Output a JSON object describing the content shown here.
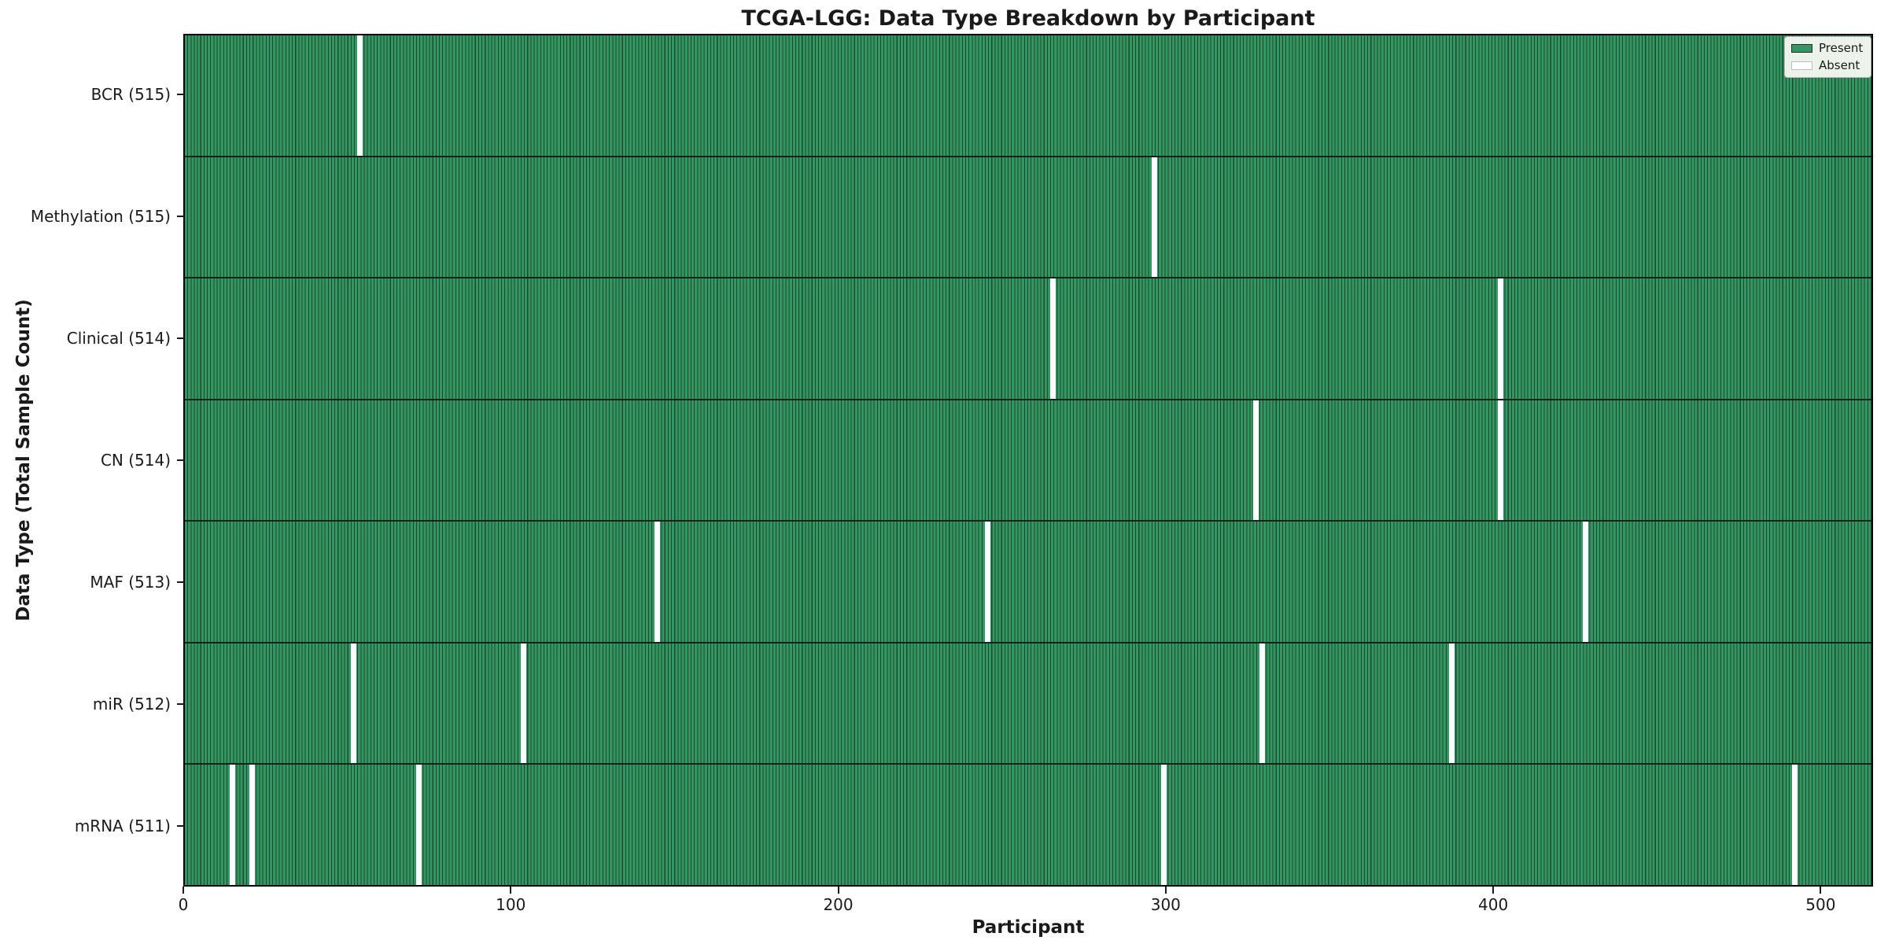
{
  "figure": {
    "title": "TCGA-LGG: Data Type Breakdown by Participant",
    "xlabel": "Participant",
    "ylabel": "Data Type (Total Sample Count)"
  },
  "legend": {
    "items": [
      {
        "label": "Present",
        "color": "#349662",
        "border": "#2d2d2d"
      },
      {
        "label": "Absent",
        "color": "#ffffff",
        "border": "#bdbdbd"
      }
    ]
  },
  "chart_data": {
    "type": "heatmap",
    "title": "TCGA-LGG: Data Type Breakdown by Participant",
    "xlabel": "Participant",
    "ylabel": "Data Type (Total Sample Count)",
    "n_participants": 516,
    "xlim": [
      0,
      516
    ],
    "x_ticks": [
      0,
      100,
      200,
      300,
      400,
      500
    ],
    "grid": false,
    "legend_position": "upper right",
    "legend_entries": [
      "Present",
      "Absent"
    ],
    "present_color": "#349662",
    "bar_edge_color": "#1b4a2f",
    "absent_color": "#ffffff",
    "rows": [
      {
        "label": "BCR (515)",
        "data_type": "BCR",
        "total_samples": 515,
        "absent_participants": [
          53
        ]
      },
      {
        "label": "Methylation (515)",
        "data_type": "Methylation",
        "total_samples": 515,
        "absent_participants": [
          296
        ]
      },
      {
        "label": "Clinical (514)",
        "data_type": "Clinical",
        "total_samples": 514,
        "absent_participants": [
          265,
          402
        ]
      },
      {
        "label": "CN (514)",
        "data_type": "CN",
        "total_samples": 514,
        "absent_participants": [
          327,
          402
        ]
      },
      {
        "label": "MAF (513)",
        "data_type": "MAF",
        "total_samples": 513,
        "absent_participants": [
          144,
          245,
          428
        ]
      },
      {
        "label": "miR (512)",
        "data_type": "miR",
        "total_samples": 512,
        "absent_participants": [
          51,
          103,
          329,
          387
        ]
      },
      {
        "label": "mRNA (511)",
        "data_type": "mRNA",
        "total_samples": 511,
        "absent_participants": [
          14,
          20,
          71,
          299,
          492
        ]
      }
    ]
  }
}
